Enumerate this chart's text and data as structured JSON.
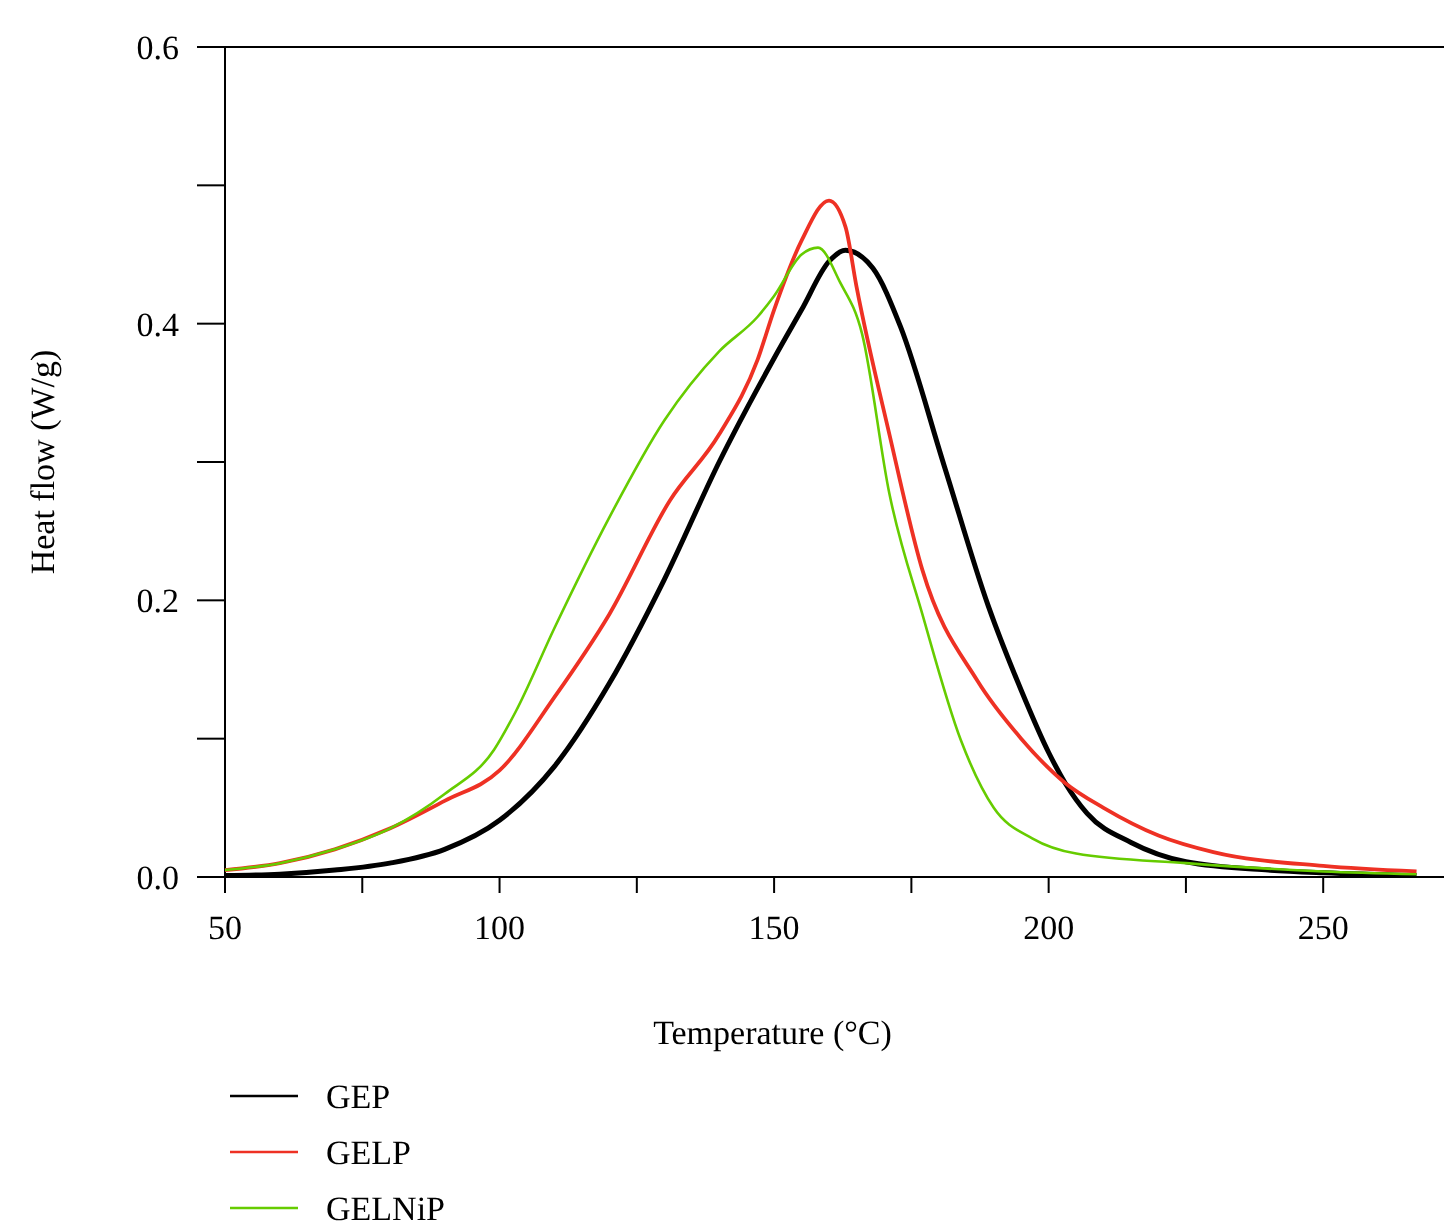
{
  "chart_data": {
    "type": "line",
    "xlabel": "Temperature (°C)",
    "ylabel": "Heat flow (W/g)",
    "xlim": [
      50,
      272
    ],
    "ylim": [
      0,
      0.6
    ],
    "xticks": [
      50,
      {
        "value": 75,
        "label": null
      },
      100,
      {
        "value": 125,
        "label": null
      },
      150,
      {
        "value": 175,
        "label": null
      },
      200,
      {
        "value": 225,
        "label": null
      },
      250
    ],
    "yticks": [
      {
        "value": 0,
        "label": "0.0"
      },
      {
        "value": 0.1,
        "label": null
      },
      0.2,
      {
        "value": 0.3,
        "label": null
      },
      0.4,
      {
        "value": 0.5,
        "label": null
      },
      0.6
    ],
    "legend": "bottom",
    "grid": false,
    "marker": "none",
    "line_style": "solid",
    "series": [
      {
        "name": "GEP",
        "color": "#000000",
        "x": [
          50,
          60,
          70,
          80,
          90,
          100,
          110,
          120,
          130,
          140,
          150,
          155,
          160,
          163,
          168,
          173,
          181,
          189,
          195,
          200,
          203,
          207,
          215,
          225,
          240,
          250,
          267
        ],
        "values": [
          0.001,
          0.002,
          0.005,
          0.01,
          0.02,
          0.041,
          0.08,
          0.14,
          0.215,
          0.3,
          0.375,
          0.41,
          0.445,
          0.453,
          0.44,
          0.398,
          0.297,
          0.196,
          0.135,
          0.09,
          0.068,
          0.046,
          0.025,
          0.011,
          0.005,
          0.003,
          0.001
        ]
      },
      {
        "name": "GELP",
        "color": "#ee3124",
        "x": [
          50,
          60,
          70,
          80,
          90,
          100,
          110,
          120,
          131,
          140,
          147,
          150,
          155,
          160,
          163,
          165,
          171,
          177,
          187,
          195,
          203,
          210,
          220,
          230,
          250,
          267
        ],
        "values": [
          0.005,
          0.01,
          0.02,
          0.035,
          0.055,
          0.077,
          0.13,
          0.19,
          0.272,
          0.32,
          0.374,
          0.41,
          0.46,
          0.489,
          0.47,
          0.427,
          0.32,
          0.222,
          0.142,
          0.1,
          0.068,
          0.05,
          0.03,
          0.018,
          0.008,
          0.004
        ]
      },
      {
        "name": "GELNiP",
        "color": "#66cc00",
        "x": [
          50,
          60,
          70,
          80,
          90,
          99,
          103,
          110,
          120,
          130,
          140,
          147,
          150,
          155,
          158,
          162,
          166,
          171,
          177,
          184,
          190,
          197,
          205,
          225,
          250,
          267
        ],
        "values": [
          0.005,
          0.01,
          0.02,
          0.035,
          0.06,
          0.092,
          0.12,
          0.18,
          0.26,
          0.33,
          0.38,
          0.405,
          0.42,
          0.45,
          0.455,
          0.43,
          0.393,
          0.277,
          0.19,
          0.099,
          0.05,
          0.028,
          0.017,
          0.01,
          0.004,
          0.002
        ]
      }
    ]
  }
}
